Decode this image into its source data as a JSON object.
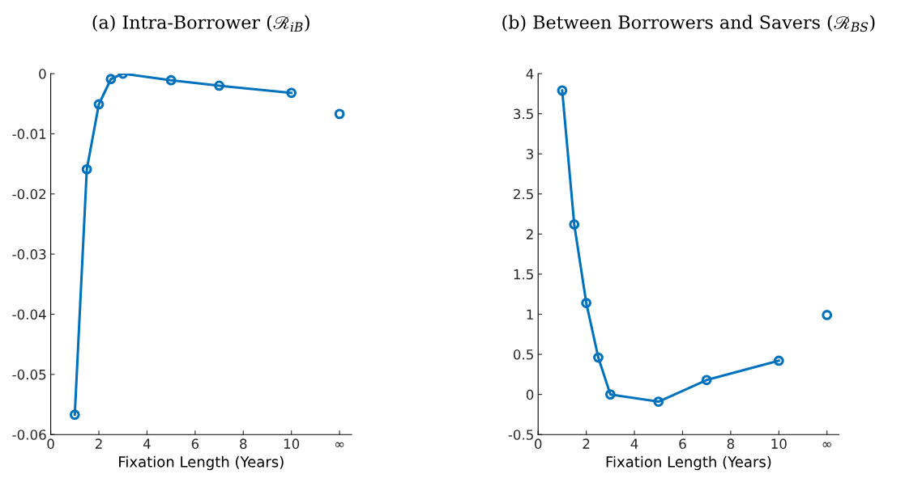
{
  "chart_data": [
    {
      "type": "line",
      "title": "(a) Intra-Borrower (ℛ$_{iB}$)",
      "xlabel": "Fixation Length (Years)",
      "marker": "circle",
      "line_style": "solid",
      "grid": false,
      "legend": false,
      "xlim": [
        0,
        12.5
      ],
      "xticks": [
        0,
        2,
        4,
        6,
        8,
        10,
        {
          "value": 12,
          "label": "∞"
        }
      ],
      "ylim": [
        -0.06,
        0
      ],
      "yticks": [
        -0.06,
        -0.05,
        -0.04,
        -0.03,
        -0.02,
        -0.01,
        0
      ],
      "series": [
        {
          "color": "#0072bd",
          "x": [
            1,
            1.5,
            2,
            2.5,
            3,
            5,
            7,
            10
          ],
          "values": [
            -0.0567,
            -0.0159,
            -0.0051,
            -0.0009,
            0,
            -0.0011,
            -0.002,
            -0.0032
          ]
        },
        {
          "type": "scatter",
          "color": "#0072bd",
          "x": [
            12
          ],
          "values": [
            -0.0067
          ]
        }
      ]
    },
    {
      "type": "line",
      "title": "(b) Between Borrowers and Savers (ℛ$_{BS}$)",
      "xlabel": "Fixation Length (Years)",
      "marker": "circle",
      "line_style": "solid",
      "grid": false,
      "legend": false,
      "xlim": [
        0,
        12.5
      ],
      "xticks": [
        0,
        2,
        4,
        6,
        8,
        10,
        {
          "value": 12,
          "label": "∞"
        }
      ],
      "ylim": [
        -0.5,
        4
      ],
      "yticks": [
        -0.5,
        0,
        0.5,
        1,
        1.5,
        2,
        2.5,
        3,
        3.5,
        4
      ],
      "series": [
        {
          "color": "#0072bd",
          "x": [
            1,
            1.5,
            2,
            2.5,
            3,
            5,
            7,
            10
          ],
          "values": [
            3.79,
            2.12,
            1.14,
            0.46,
            0,
            -0.09,
            0.18,
            0.42
          ]
        },
        {
          "type": "scatter",
          "color": "#0072bd",
          "x": [
            12
          ],
          "values": [
            0.99
          ]
        }
      ]
    }
  ]
}
